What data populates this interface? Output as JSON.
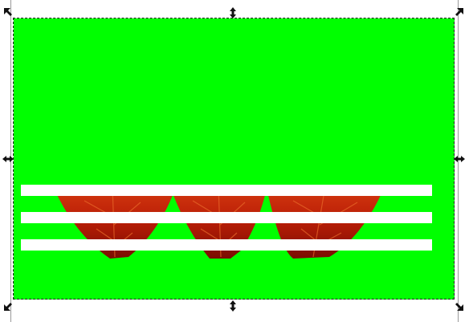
{
  "canvas": {
    "background": "#ffffff",
    "guide_color": "#9a9a9a"
  },
  "objects": {
    "background_rect": {
      "color": "#00ff00"
    },
    "leaf_image": {
      "colors": [
        "#b81d06",
        "#d63a10",
        "#7a0e02"
      ],
      "leaf_count": 3
    },
    "stripes": {
      "color": "#ffffff",
      "count": 3
    }
  },
  "selection": {
    "handle_icons": [
      "scale-nw-icon",
      "scale-n-icon",
      "scale-ne-icon",
      "scale-w-icon",
      "scale-e-icon",
      "scale-sw-icon",
      "scale-s-icon",
      "scale-se-icon"
    ]
  }
}
